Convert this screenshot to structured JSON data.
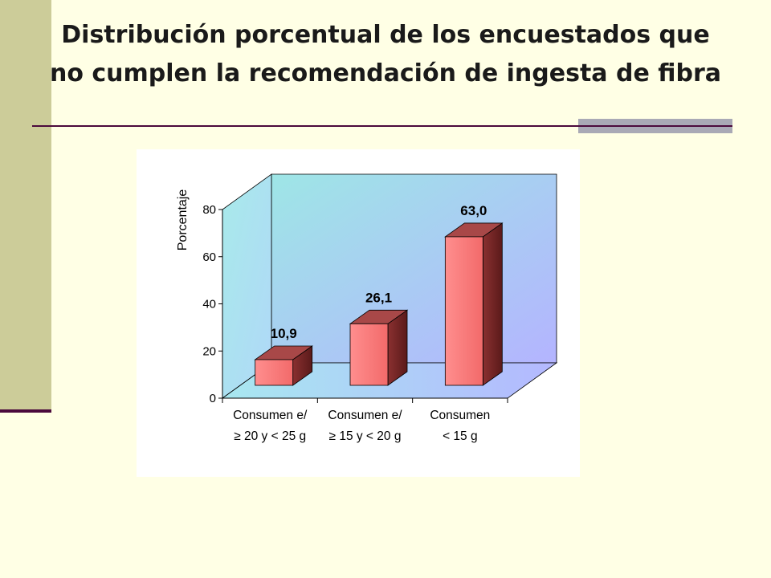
{
  "slide": {
    "title_line1": "Distribución porcentual de los encuestados que",
    "title_line2": "no cumplen la recomendación de ingesta de fibra",
    "accent_color": "#4B0A3C",
    "sidebar_color": "#CCCC99",
    "background_color": "#FFFFE5"
  },
  "chart_data": {
    "type": "bar",
    "title": "",
    "ylabel": "Porcentaje",
    "xlabel": "",
    "ylim": [
      0,
      80
    ],
    "yticks": [
      0,
      20,
      40,
      60,
      80
    ],
    "categories": [
      [
        "Consumen e/",
        "≥ 20 y < 25 g"
      ],
      [
        "Consumen e/",
        "≥ 15 y < 20 g"
      ],
      [
        "Consumen",
        "< 15 g"
      ]
    ],
    "values": [
      10.9,
      26.1,
      63.0
    ],
    "value_labels": [
      "10,9",
      "26,1",
      "63,0"
    ],
    "bar_color": "#FF7F7F",
    "bar_side_color": "#7A2A2A",
    "bar_top_color": "#A84848",
    "wall_color": "#A0E0E8",
    "wall_color_end": "#B0B0FF",
    "style": "3d-column",
    "grid": false
  }
}
